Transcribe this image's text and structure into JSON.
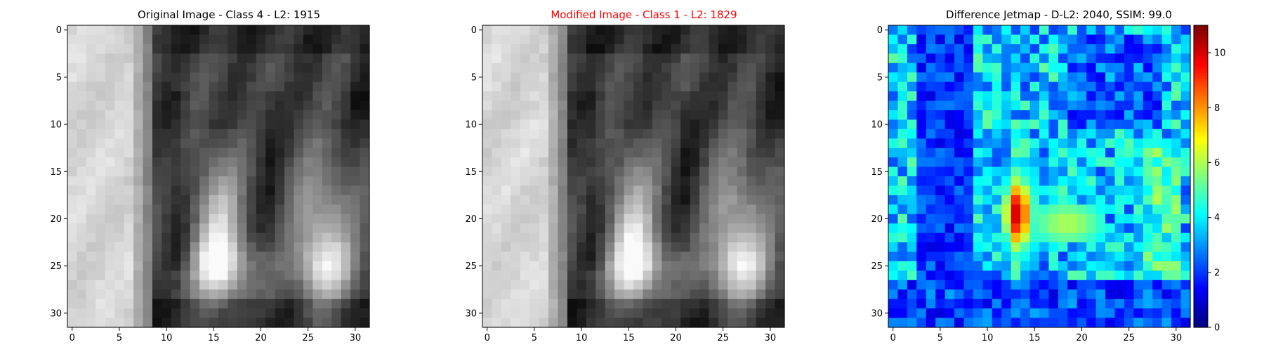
{
  "figure": {
    "background": "#ffffff",
    "title_accent": "#ff0000",
    "title_default": "#000000"
  },
  "chart_data": [
    {
      "type": "heatmap",
      "title": "Original Image - Class 4 - L2: 1915",
      "title_color": "#000000",
      "colormap": "gray",
      "xlim": [
        -0.5,
        31.5
      ],
      "ylim": [
        31.5,
        -0.5
      ],
      "x_ticks": [
        0,
        5,
        10,
        15,
        20,
        25,
        30
      ],
      "y_ticks": [
        0,
        5,
        10,
        15,
        20,
        25,
        30
      ],
      "grid": false,
      "shape": [
        32,
        32
      ]
    },
    {
      "type": "heatmap",
      "title": "Modified Image - Class 1 - L2: 1829",
      "title_color": "#ff0000",
      "colormap": "gray",
      "xlim": [
        -0.5,
        31.5
      ],
      "ylim": [
        31.5,
        -0.5
      ],
      "x_ticks": [
        0,
        5,
        10,
        15,
        20,
        25,
        30
      ],
      "y_ticks": [
        0,
        5,
        10,
        15,
        20,
        25,
        30
      ],
      "grid": false,
      "shape": [
        32,
        32
      ]
    },
    {
      "type": "heatmap",
      "title": "Difference Jetmap - D-L2: 2040, SSIM: 99.0",
      "title_color": "#000000",
      "colormap": "jet",
      "xlim": [
        -0.5,
        31.5
      ],
      "ylim": [
        31.5,
        -0.5
      ],
      "x_ticks": [
        0,
        5,
        10,
        15,
        20,
        25,
        30
      ],
      "y_ticks": [
        0,
        5,
        10,
        15,
        20,
        25,
        30
      ],
      "grid": false,
      "shape": [
        32,
        32
      ],
      "colorbar": {
        "range": [
          0,
          11
        ],
        "ticks": [
          0,
          2,
          4,
          6,
          8,
          10
        ]
      }
    }
  ]
}
